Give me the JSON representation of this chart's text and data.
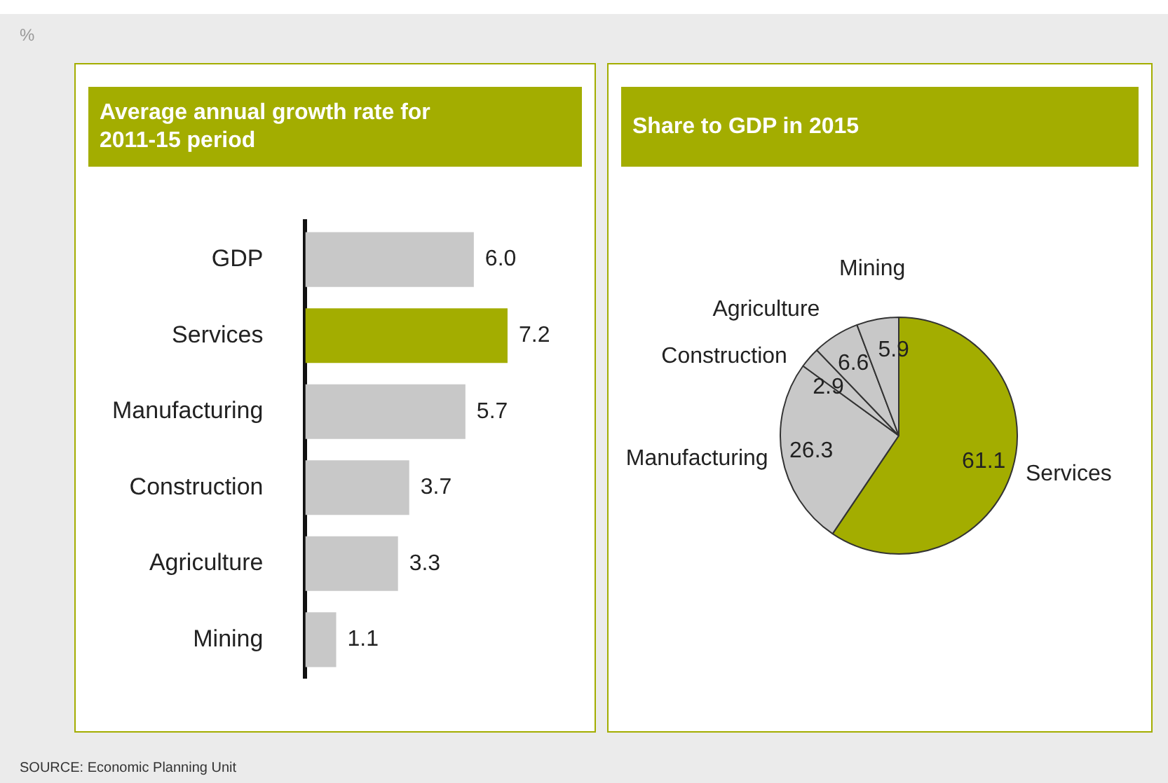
{
  "chart_data": [
    {
      "type": "bar",
      "title": "Average annual growth rate for 2011-15 period",
      "orientation": "horizontal",
      "categories": [
        "GDP",
        "Services",
        "Manufacturing",
        "Construction",
        "Agriculture",
        "Mining"
      ],
      "values": [
        6.0,
        7.2,
        5.7,
        3.7,
        3.3,
        1.1
      ],
      "value_labels": [
        "6.0",
        "7.2",
        "5.7",
        "3.7",
        "3.3",
        "1.1"
      ],
      "colors": [
        "#c8c8c8",
        "#a3ad00",
        "#c8c8c8",
        "#c8c8c8",
        "#c8c8c8",
        "#c8c8c8"
      ],
      "legend": false,
      "annotations": [
        "%",
        "SOURCE: Economic Planning Unit"
      ]
    },
    {
      "type": "pie",
      "title": "Share to GDP in 2015",
      "categories": [
        "Services",
        "Manufacturing",
        "Construction",
        "Agriculture",
        "Mining"
      ],
      "values": [
        61.1,
        26.3,
        2.9,
        6.6,
        5.9
      ],
      "value_labels": [
        "61.1",
        "26.3",
        "2.9",
        "6.6",
        "5.9"
      ],
      "colors": [
        "#a3ad00",
        "#c8c8c8",
        "#c8c8c8",
        "#c8c8c8",
        "#c8c8c8"
      ],
      "legend": false
    }
  ]
}
